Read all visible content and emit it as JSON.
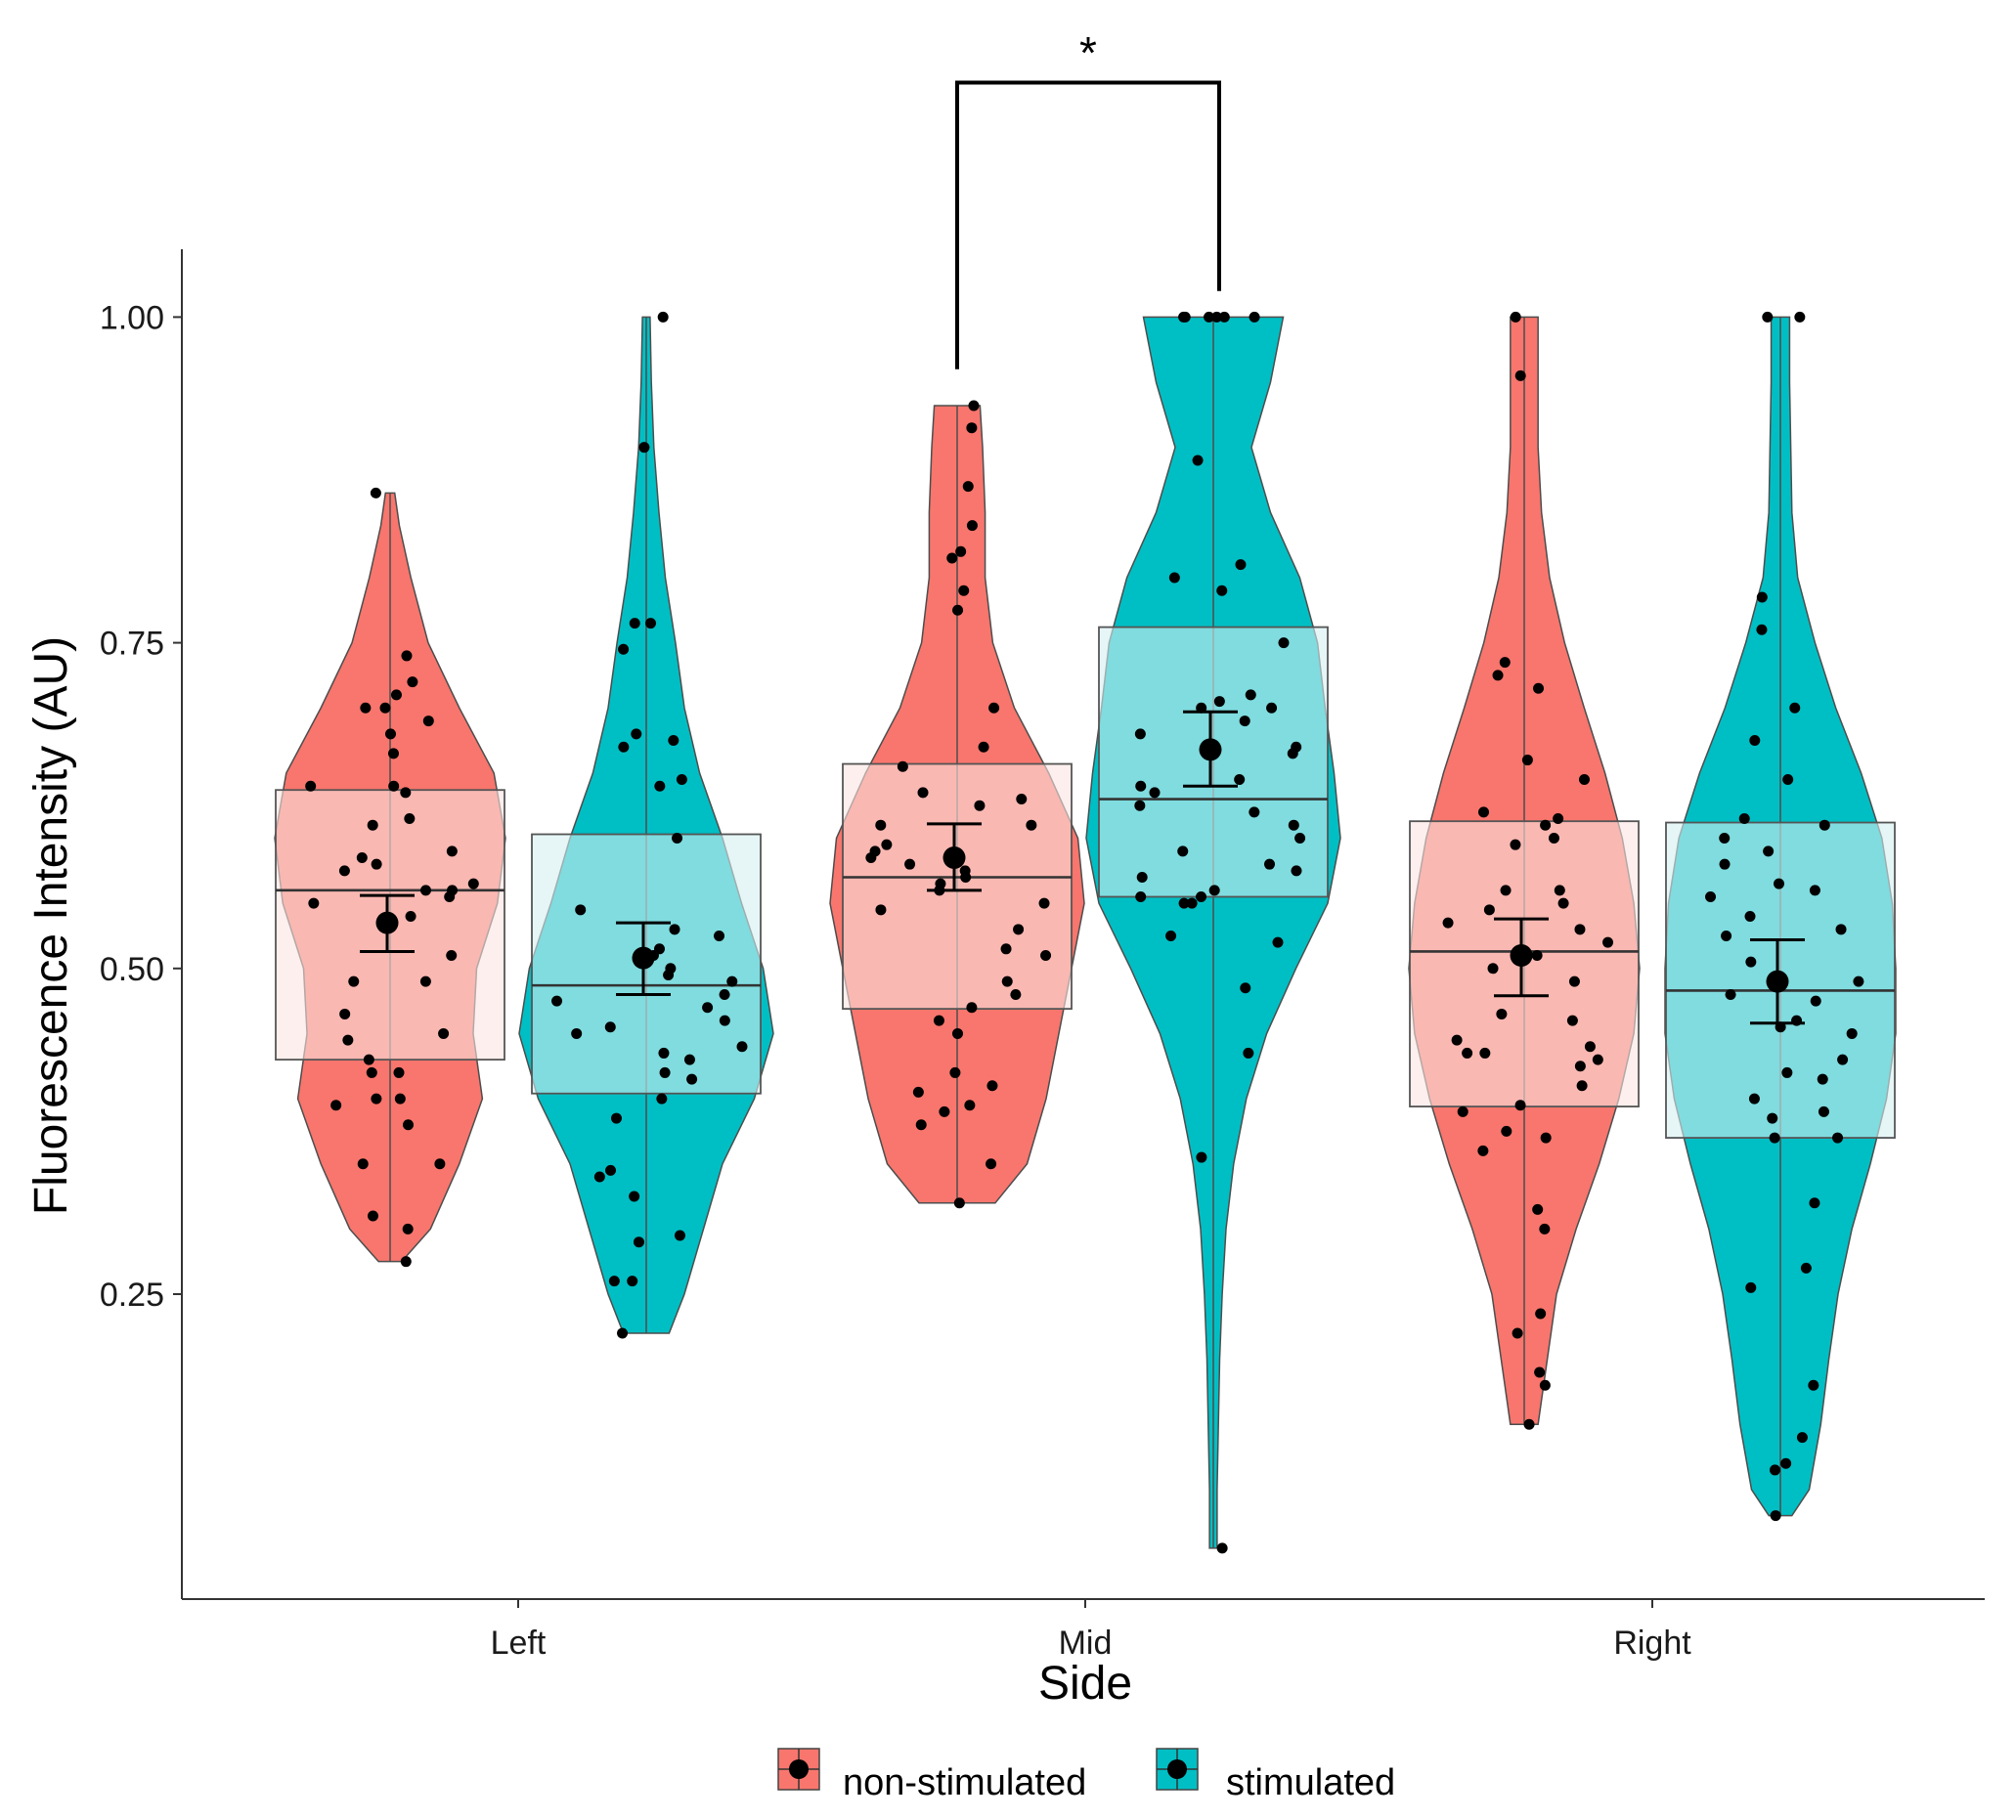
{
  "chart_data": {
    "type": "violin",
    "title": "",
    "xlabel": "Side",
    "ylabel": "Fluorescence Intensity (AU)",
    "ylim": [
      0.0,
      1.05
    ],
    "yticks": [
      0.25,
      0.5,
      0.75,
      1.0
    ],
    "ytick_labels": [
      "0.25",
      "0.50",
      "0.75",
      "1.00"
    ],
    "categories": [
      "Left",
      "Mid",
      "Right"
    ],
    "legend": {
      "position": "bottom",
      "entries": [
        {
          "name": "non-stimulated",
          "color": "#F8766D"
        },
        {
          "name": "stimulated",
          "color": "#00BFC4"
        }
      ]
    },
    "significance": [
      {
        "category": "Mid",
        "between": [
          "non-stimulated",
          "stimulated"
        ],
        "label": "*",
        "y_left": 0.96,
        "y_right": 1.02,
        "y_top": 1.18
      }
    ],
    "groups": [
      {
        "category": "Left",
        "series": "non-stimulated",
        "color": "#F8766D",
        "box_fill": "#FCE4E1",
        "min": 0.275,
        "max": 0.865,
        "box_low": 0.43,
        "box_high": 0.637,
        "median": 0.56,
        "mean": 0.535,
        "err_low": 0.513,
        "err_high": 0.556,
        "violin_profile": [
          [
            0.275,
            0.1
          ],
          [
            0.3,
            0.35
          ],
          [
            0.35,
            0.6
          ],
          [
            0.4,
            0.8
          ],
          [
            0.45,
            0.72
          ],
          [
            0.5,
            0.75
          ],
          [
            0.55,
            0.93
          ],
          [
            0.6,
            1.0
          ],
          [
            0.65,
            0.9
          ],
          [
            0.7,
            0.6
          ],
          [
            0.75,
            0.33
          ],
          [
            0.8,
            0.18
          ],
          [
            0.84,
            0.08
          ],
          [
            0.865,
            0.04
          ]
        ],
        "points": [
          0.865,
          0.74,
          0.71,
          0.7,
          0.7,
          0.69,
          0.72,
          0.68,
          0.665,
          0.64,
          0.64,
          0.635,
          0.615,
          0.61,
          0.59,
          0.585,
          0.58,
          0.575,
          0.565,
          0.56,
          0.56,
          0.555,
          0.55,
          0.54,
          0.51,
          0.49,
          0.49,
          0.465,
          0.45,
          0.445,
          0.43,
          0.42,
          0.42,
          0.4,
          0.4,
          0.395,
          0.38,
          0.35,
          0.35,
          0.31,
          0.3,
          0.275
        ]
      },
      {
        "category": "Left",
        "series": "stimulated",
        "color": "#00BFC4",
        "box_fill": "#D5F0F2",
        "min": 0.22,
        "max": 1.0,
        "box_low": 0.404,
        "box_high": 0.603,
        "median": 0.487,
        "mean": 0.508,
        "err_low": 0.48,
        "err_high": 0.535,
        "violin_profile": [
          [
            0.22,
            0.18
          ],
          [
            0.25,
            0.3
          ],
          [
            0.3,
            0.45
          ],
          [
            0.35,
            0.6
          ],
          [
            0.4,
            0.85
          ],
          [
            0.45,
            1.0
          ],
          [
            0.5,
            0.92
          ],
          [
            0.55,
            0.75
          ],
          [
            0.6,
            0.6
          ],
          [
            0.65,
            0.42
          ],
          [
            0.7,
            0.3
          ],
          [
            0.75,
            0.23
          ],
          [
            0.8,
            0.15
          ],
          [
            0.85,
            0.1
          ],
          [
            0.9,
            0.06
          ],
          [
            0.95,
            0.04
          ],
          [
            1.0,
            0.03
          ]
        ],
        "points": [
          1.0,
          0.9,
          0.765,
          0.765,
          0.745,
          0.68,
          0.675,
          0.67,
          0.645,
          0.64,
          0.6,
          0.545,
          0.53,
          0.525,
          0.515,
          0.51,
          0.5,
          0.495,
          0.49,
          0.48,
          0.475,
          0.47,
          0.46,
          0.455,
          0.45,
          0.44,
          0.435,
          0.43,
          0.42,
          0.415,
          0.4,
          0.385,
          0.345,
          0.34,
          0.325,
          0.295,
          0.29,
          0.26,
          0.26,
          0.22
        ]
      },
      {
        "category": "Mid",
        "series": "non-stimulated",
        "color": "#F8766D",
        "box_fill": "#FCE4E1",
        "min": 0.32,
        "max": 0.932,
        "box_low": 0.469,
        "box_high": 0.657,
        "median": 0.57,
        "mean": 0.585,
        "err_low": 0.56,
        "err_high": 0.611,
        "violin_profile": [
          [
            0.32,
            0.3
          ],
          [
            0.35,
            0.55
          ],
          [
            0.4,
            0.7
          ],
          [
            0.45,
            0.8
          ],
          [
            0.5,
            0.9
          ],
          [
            0.55,
            1.0
          ],
          [
            0.6,
            0.95
          ],
          [
            0.65,
            0.72
          ],
          [
            0.7,
            0.45
          ],
          [
            0.75,
            0.28
          ],
          [
            0.8,
            0.22
          ],
          [
            0.85,
            0.22
          ],
          [
            0.9,
            0.2
          ],
          [
            0.932,
            0.18
          ]
        ],
        "points": [
          0.932,
          0.915,
          0.87,
          0.84,
          0.82,
          0.815,
          0.79,
          0.775,
          0.7,
          0.67,
          0.655,
          0.635,
          0.63,
          0.625,
          0.61,
          0.61,
          0.595,
          0.59,
          0.585,
          0.58,
          0.575,
          0.57,
          0.565,
          0.56,
          0.55,
          0.545,
          0.53,
          0.515,
          0.51,
          0.49,
          0.48,
          0.47,
          0.46,
          0.45,
          0.42,
          0.41,
          0.405,
          0.395,
          0.39,
          0.38,
          0.35,
          0.32
        ]
      },
      {
        "category": "Mid",
        "series": "stimulated",
        "color": "#00BFC4",
        "box_fill": "#D5F0F2",
        "min": 0.055,
        "max": 1.0,
        "box_low": 0.555,
        "box_high": 0.762,
        "median": 0.63,
        "mean": 0.668,
        "err_low": 0.64,
        "err_high": 0.697,
        "violin_profile": [
          [
            0.055,
            0.03
          ],
          [
            0.1,
            0.03
          ],
          [
            0.15,
            0.04
          ],
          [
            0.2,
            0.05
          ],
          [
            0.25,
            0.07
          ],
          [
            0.3,
            0.1
          ],
          [
            0.35,
            0.16
          ],
          [
            0.4,
            0.26
          ],
          [
            0.45,
            0.42
          ],
          [
            0.5,
            0.65
          ],
          [
            0.55,
            0.9
          ],
          [
            0.6,
            1.0
          ],
          [
            0.65,
            0.95
          ],
          [
            0.7,
            0.88
          ],
          [
            0.75,
            0.82
          ],
          [
            0.8,
            0.68
          ],
          [
            0.85,
            0.45
          ],
          [
            0.9,
            0.3
          ],
          [
            0.95,
            0.45
          ],
          [
            1.0,
            0.55
          ]
        ],
        "points": [
          1.0,
          1.0,
          1.0,
          1.0,
          1.0,
          1.0,
          0.89,
          0.81,
          0.8,
          0.79,
          0.75,
          0.71,
          0.705,
          0.7,
          0.7,
          0.69,
          0.68,
          0.67,
          0.665,
          0.645,
          0.64,
          0.635,
          0.625,
          0.62,
          0.61,
          0.6,
          0.59,
          0.58,
          0.575,
          0.57,
          0.56,
          0.555,
          0.555,
          0.55,
          0.55,
          0.525,
          0.52,
          0.485,
          0.435,
          0.355,
          0.055
        ]
      },
      {
        "category": "Right",
        "series": "non-stimulated",
        "color": "#F8766D",
        "box_fill": "#FCE4E1",
        "min": 0.15,
        "max": 1.0,
        "box_low": 0.394,
        "box_high": 0.613,
        "median": 0.513,
        "mean": 0.51,
        "err_low": 0.479,
        "err_high": 0.538,
        "violin_profile": [
          [
            0.15,
            0.12
          ],
          [
            0.2,
            0.2
          ],
          [
            0.25,
            0.28
          ],
          [
            0.3,
            0.45
          ],
          [
            0.35,
            0.65
          ],
          [
            0.4,
            0.82
          ],
          [
            0.45,
            0.95
          ],
          [
            0.5,
            1.0
          ],
          [
            0.55,
            0.95
          ],
          [
            0.6,
            0.85
          ],
          [
            0.65,
            0.7
          ],
          [
            0.7,
            0.52
          ],
          [
            0.75,
            0.35
          ],
          [
            0.8,
            0.22
          ],
          [
            0.85,
            0.15
          ],
          [
            0.9,
            0.12
          ],
          [
            0.95,
            0.12
          ],
          [
            1.0,
            0.12
          ]
        ],
        "points": [
          1.0,
          0.955,
          0.735,
          0.725,
          0.715,
          0.66,
          0.645,
          0.62,
          0.615,
          0.61,
          0.6,
          0.595,
          0.56,
          0.56,
          0.55,
          0.545,
          0.535,
          0.53,
          0.52,
          0.51,
          0.5,
          0.49,
          0.465,
          0.46,
          0.445,
          0.44,
          0.435,
          0.435,
          0.43,
          0.425,
          0.41,
          0.395,
          0.39,
          0.375,
          0.37,
          0.36,
          0.315,
          0.3,
          0.235,
          0.22,
          0.19,
          0.18,
          0.15
        ]
      },
      {
        "category": "Right",
        "series": "stimulated",
        "color": "#00BFC4",
        "box_fill": "#D5F0F2",
        "min": 0.08,
        "max": 1.0,
        "box_low": 0.37,
        "box_high": 0.612,
        "median": 0.483,
        "mean": 0.49,
        "err_low": 0.458,
        "err_high": 0.522,
        "violin_profile": [
          [
            0.08,
            0.1
          ],
          [
            0.1,
            0.25
          ],
          [
            0.15,
            0.35
          ],
          [
            0.2,
            0.42
          ],
          [
            0.25,
            0.5
          ],
          [
            0.3,
            0.62
          ],
          [
            0.35,
            0.78
          ],
          [
            0.4,
            0.92
          ],
          [
            0.45,
            1.0
          ],
          [
            0.5,
            1.0
          ],
          [
            0.55,
            0.97
          ],
          [
            0.6,
            0.88
          ],
          [
            0.65,
            0.7
          ],
          [
            0.7,
            0.48
          ],
          [
            0.75,
            0.3
          ],
          [
            0.8,
            0.15
          ],
          [
            0.85,
            0.1
          ],
          [
            0.9,
            0.09
          ],
          [
            0.95,
            0.08
          ],
          [
            1.0,
            0.08
          ]
        ],
        "points": [
          1.0,
          1.0,
          0.785,
          0.76,
          0.7,
          0.675,
          0.645,
          0.615,
          0.61,
          0.6,
          0.59,
          0.58,
          0.565,
          0.56,
          0.555,
          0.54,
          0.53,
          0.525,
          0.505,
          0.49,
          0.48,
          0.475,
          0.46,
          0.455,
          0.45,
          0.43,
          0.42,
          0.415,
          0.4,
          0.39,
          0.385,
          0.37,
          0.37,
          0.32,
          0.27,
          0.255,
          0.18,
          0.14,
          0.12,
          0.115,
          0.08
        ]
      }
    ]
  }
}
